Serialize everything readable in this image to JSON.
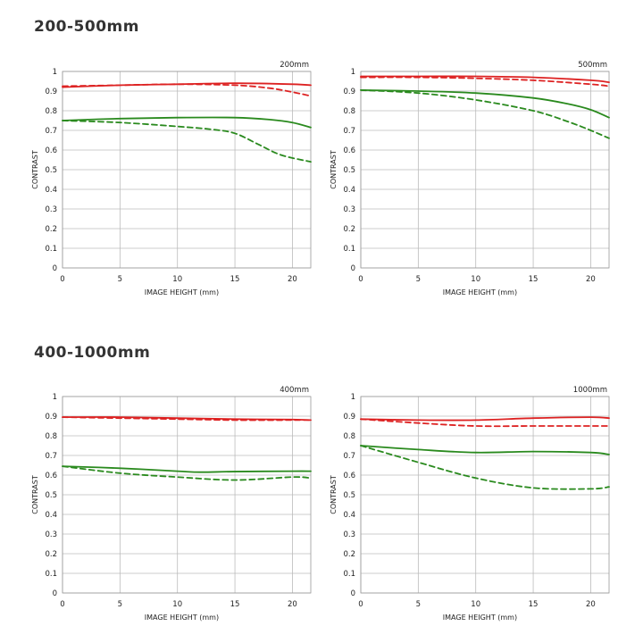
{
  "sections": [
    {
      "title": "200-500mm"
    },
    {
      "title": "400-1000mm"
    }
  ],
  "colors": {
    "sagittal_mtf_10": "#dd2222",
    "mtf_30": "#2a8a1e",
    "grid": "#bbbbbb"
  },
  "chart_data": [
    {
      "type": "line",
      "title": "200mm",
      "xlabel": "IMAGE HEIGHT (mm)",
      "ylabel": "CONTRAST",
      "xlim": [
        0,
        21.6
      ],
      "ylim": [
        0,
        1
      ],
      "x_ticks": [
        0,
        5,
        10,
        15,
        20
      ],
      "y_ticks": [
        0,
        0.1,
        0.2,
        0.3,
        0.4,
        0.5,
        0.6,
        0.7,
        0.8,
        0.9,
        1
      ],
      "y_tick_labels": [
        "0",
        "0.1",
        "0.2",
        "0.3",
        "0.4",
        "0.5",
        "0.6",
        "0.7",
        "0.8",
        "0.9",
        "1"
      ],
      "grid": true,
      "series": [
        {
          "color": "#dd2222",
          "style": "solid",
          "x": [
            0,
            5,
            10,
            15,
            20,
            21.6
          ],
          "y": [
            0.92,
            0.93,
            0.935,
            0.94,
            0.935,
            0.93
          ]
        },
        {
          "color": "#dd2222",
          "style": "dashed",
          "x": [
            0,
            5,
            10,
            15,
            18,
            20,
            21.6
          ],
          "y": [
            0.925,
            0.93,
            0.935,
            0.93,
            0.915,
            0.895,
            0.875
          ]
        },
        {
          "color": "#2a8a1e",
          "style": "solid",
          "x": [
            0,
            5,
            10,
            15,
            18,
            20,
            21.6
          ],
          "y": [
            0.75,
            0.76,
            0.765,
            0.765,
            0.755,
            0.74,
            0.715
          ]
        },
        {
          "color": "#2a8a1e",
          "style": "dashed",
          "x": [
            0,
            5,
            10,
            13,
            15,
            17,
            19,
            21.6
          ],
          "y": [
            0.75,
            0.74,
            0.72,
            0.705,
            0.685,
            0.63,
            0.575,
            0.54
          ]
        }
      ]
    },
    {
      "type": "line",
      "title": "500mm",
      "xlabel": "IMAGE HEIGHT (mm)",
      "ylabel": "CONTRAST",
      "xlim": [
        0,
        21.6
      ],
      "ylim": [
        0,
        1
      ],
      "x_ticks": [
        0,
        5,
        10,
        15,
        20
      ],
      "y_ticks": [
        0,
        0.1,
        0.2,
        0.3,
        0.4,
        0.5,
        0.6,
        0.7,
        0.8,
        0.9,
        1
      ],
      "y_tick_labels": [
        "0",
        "0.1",
        "0.2",
        "0.3",
        "0.4",
        "0.5",
        "0.6",
        "0.7",
        "0.8",
        "0.9",
        "1"
      ],
      "grid": true,
      "series": [
        {
          "color": "#dd2222",
          "style": "solid",
          "x": [
            0,
            5,
            10,
            15,
            20,
            21.6
          ],
          "y": [
            0.975,
            0.975,
            0.975,
            0.97,
            0.955,
            0.945
          ]
        },
        {
          "color": "#dd2222",
          "style": "dashed",
          "x": [
            0,
            5,
            10,
            15,
            20,
            21.6
          ],
          "y": [
            0.97,
            0.97,
            0.965,
            0.955,
            0.935,
            0.925
          ]
        },
        {
          "color": "#2a8a1e",
          "style": "solid",
          "x": [
            0,
            5,
            10,
            15,
            18,
            20,
            21.6
          ],
          "y": [
            0.905,
            0.9,
            0.89,
            0.865,
            0.835,
            0.805,
            0.765
          ]
        },
        {
          "color": "#2a8a1e",
          "style": "dashed",
          "x": [
            0,
            5,
            10,
            15,
            18,
            20,
            21.6
          ],
          "y": [
            0.905,
            0.89,
            0.855,
            0.8,
            0.745,
            0.7,
            0.66
          ]
        }
      ]
    },
    {
      "type": "line",
      "title": "400mm",
      "xlabel": "IMAGE HEIGHT (mm)",
      "ylabel": "CONTRAST",
      "xlim": [
        0,
        21.6
      ],
      "ylim": [
        0,
        1
      ],
      "x_ticks": [
        0,
        5,
        10,
        15,
        20
      ],
      "y_ticks": [
        0,
        0.1,
        0.2,
        0.3,
        0.4,
        0.5,
        0.6,
        0.7,
        0.8,
        0.9,
        1
      ],
      "y_tick_labels": [
        "0",
        "0.1",
        "0.2",
        "0.3",
        "0.4",
        "0.5",
        "0.6",
        "0.7",
        "0.8",
        "0.9",
        "1"
      ],
      "grid": true,
      "series": [
        {
          "color": "#dd2222",
          "style": "solid",
          "x": [
            0,
            5,
            10,
            15,
            20,
            21.6
          ],
          "y": [
            0.895,
            0.895,
            0.89,
            0.885,
            0.883,
            0.88
          ]
        },
        {
          "color": "#dd2222",
          "style": "dashed",
          "x": [
            0,
            5,
            10,
            15,
            20,
            21.6
          ],
          "y": [
            0.895,
            0.89,
            0.885,
            0.88,
            0.88,
            0.88
          ]
        },
        {
          "color": "#2a8a1e",
          "style": "solid",
          "x": [
            0,
            5,
            10,
            12,
            15,
            20,
            21.6
          ],
          "y": [
            0.645,
            0.635,
            0.62,
            0.615,
            0.618,
            0.62,
            0.62
          ]
        },
        {
          "color": "#2a8a1e",
          "style": "dashed",
          "x": [
            0,
            5,
            10,
            15,
            20,
            21.6
          ],
          "y": [
            0.645,
            0.61,
            0.59,
            0.575,
            0.59,
            0.585
          ]
        }
      ]
    },
    {
      "type": "line",
      "title": "1000mm",
      "xlabel": "IMAGE HEIGHT (mm)",
      "ylabel": "CONTRAST",
      "xlim": [
        0,
        21.6
      ],
      "ylim": [
        0,
        1
      ],
      "x_ticks": [
        0,
        5,
        10,
        15,
        20
      ],
      "y_ticks": [
        0,
        0.1,
        0.2,
        0.3,
        0.4,
        0.5,
        0.6,
        0.7,
        0.8,
        0.9,
        1
      ],
      "y_tick_labels": [
        "0",
        "0.1",
        "0.2",
        "0.3",
        "0.4",
        "0.5",
        "0.6",
        "0.7",
        "0.8",
        "0.9",
        "1"
      ],
      "grid": true,
      "series": [
        {
          "color": "#dd2222",
          "style": "solid",
          "x": [
            0,
            5,
            10,
            15,
            20,
            21.6
          ],
          "y": [
            0.885,
            0.88,
            0.88,
            0.89,
            0.895,
            0.89
          ]
        },
        {
          "color": "#dd2222",
          "style": "dashed",
          "x": [
            0,
            5,
            10,
            15,
            20,
            21.6
          ],
          "y": [
            0.885,
            0.865,
            0.85,
            0.85,
            0.85,
            0.85
          ]
        },
        {
          "color": "#2a8a1e",
          "style": "solid",
          "x": [
            0,
            5,
            10,
            15,
            20,
            21.6
          ],
          "y": [
            0.75,
            0.73,
            0.715,
            0.72,
            0.715,
            0.705
          ]
        },
        {
          "color": "#2a8a1e",
          "style": "dashed",
          "x": [
            0,
            5,
            10,
            15,
            20,
            21.6
          ],
          "y": [
            0.75,
            0.665,
            0.585,
            0.535,
            0.53,
            0.54
          ]
        }
      ]
    }
  ]
}
